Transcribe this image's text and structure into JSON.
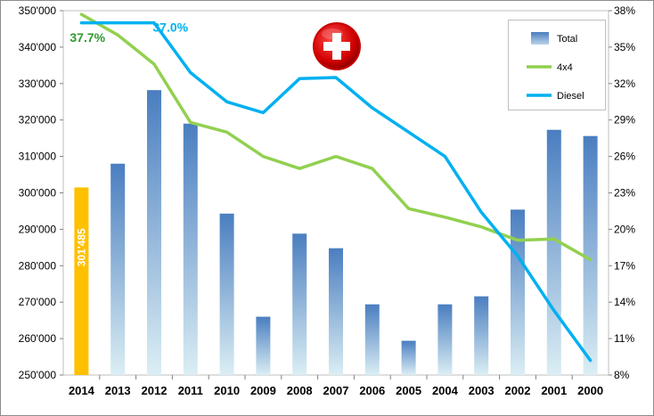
{
  "chart_data": {
    "type": "bar",
    "categories": [
      "2014",
      "2013",
      "2012",
      "2011",
      "2010",
      "2009",
      "2008",
      "2007",
      "2006",
      "2005",
      "2004",
      "2003",
      "2002",
      "2001",
      "2000"
    ],
    "series": [
      {
        "name": "Total",
        "kind": "bar",
        "axis": "left",
        "color": "#4f81bd",
        "values": [
          301485,
          308000,
          328200,
          319000,
          294300,
          266000,
          288800,
          284800,
          269400,
          259400,
          269400,
          271600,
          295400,
          317300,
          315600
        ]
      },
      {
        "name": "4x4",
        "kind": "line",
        "axis": "right",
        "color": "#92d050",
        "values": [
          37.7,
          36.0,
          33.6,
          28.8,
          28.0,
          26.0,
          25.0,
          26.0,
          25.0,
          21.7,
          21.0,
          20.2,
          19.1,
          19.2,
          17.5
        ]
      },
      {
        "name": "Diesel",
        "kind": "line",
        "axis": "right",
        "color": "#00b0f0",
        "values": [
          37.0,
          37.0,
          37.0,
          32.9,
          30.5,
          29.6,
          32.4,
          32.5,
          30.0,
          28.0,
          26.0,
          21.4,
          17.8,
          13.3,
          9.2
        ]
      }
    ],
    "highlight": {
      "category": "2014",
      "color": "#ffc000",
      "label": "301'485"
    },
    "annotations": [
      {
        "text": "37.7%",
        "series": "4x4",
        "color": "#2e9a2e"
      },
      {
        "text": "37.0%",
        "series": "Diesel",
        "color": "#00b0f0"
      }
    ],
    "ylim_left": [
      250000,
      350000
    ],
    "ylim_right": [
      8,
      38
    ],
    "yticks_left": [
      "250'000",
      "260'000",
      "270'000",
      "280'000",
      "290'000",
      "300'000",
      "310'000",
      "320'000",
      "330'000",
      "340'000",
      "350'000"
    ],
    "yticks_right": [
      "8%",
      "11%",
      "14%",
      "17%",
      "20%",
      "23%",
      "26%",
      "29%",
      "32%",
      "35%",
      "38%"
    ],
    "title": "",
    "xlabel": "",
    "ylabel": "",
    "grid": false,
    "legend": {
      "position": "top-right",
      "entries": [
        {
          "label": "Total",
          "kind": "bar"
        },
        {
          "label": "4x4",
          "kind": "line",
          "color": "#92d050"
        },
        {
          "label": "Diesel",
          "kind": "line",
          "color": "#00b0f0"
        }
      ]
    },
    "flag": {
      "icon": "swiss-flag-icon",
      "color": "#e30613"
    }
  }
}
